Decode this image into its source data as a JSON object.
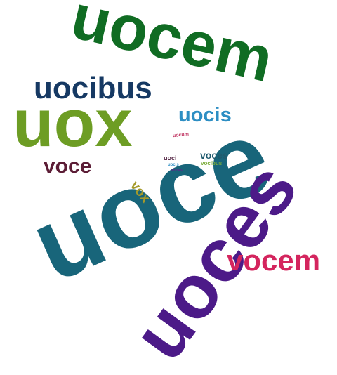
{
  "word_cloud": {
    "words": [
      {
        "key": "uocem",
        "text": "uocem",
        "color": "#106c23"
      },
      {
        "key": "uocibus",
        "text": "uocibus",
        "color": "#163963"
      },
      {
        "key": "uox",
        "text": "uox",
        "color": "#6d9d24"
      },
      {
        "key": "uocis",
        "text": "uocis",
        "color": "#2d8ec3"
      },
      {
        "key": "uoce",
        "text": "uoce",
        "color": "#18657a"
      },
      {
        "key": "voce",
        "text": "voce",
        "color": "#5c1d36"
      },
      {
        "key": "voces",
        "text": "voces",
        "color": "#1f5a6e"
      },
      {
        "key": "uocibus2",
        "text": "vocibus",
        "color": "#7bad3a"
      },
      {
        "key": "uocum",
        "text": "uocum",
        "color": "#c23a66"
      },
      {
        "key": "uoci",
        "text": "uoci",
        "color": "#4b1a3a"
      },
      {
        "key": "tiny1",
        "text": "uocis",
        "color": "#2d8ec3"
      },
      {
        "key": "tiny2",
        "text": "voces",
        "color": "#5a2a8a"
      },
      {
        "key": "vox",
        "text": "vox",
        "color": "#a59a2a"
      },
      {
        "key": "uoces",
        "text": "uoces",
        "color": "#4c1a88"
      },
      {
        "key": "vocem",
        "text": "vocem",
        "color": "#d4255e"
      }
    ]
  }
}
